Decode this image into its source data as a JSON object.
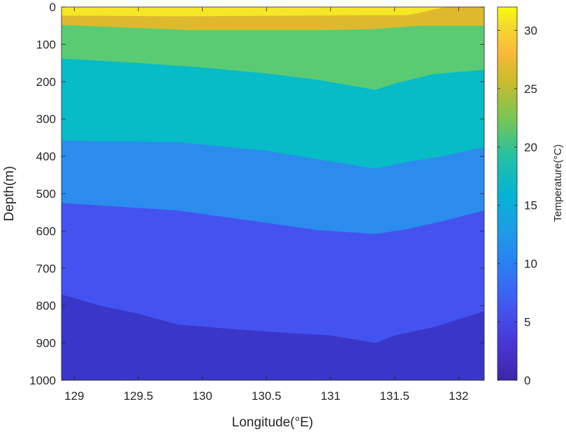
{
  "chart_data": {
    "type": "heatmap",
    "title": "",
    "xlabel": "Longitude(°E)",
    "ylabel": "Depth(m)",
    "xlim": [
      128.9,
      132.2
    ],
    "ylim": [
      0,
      1000
    ],
    "y_reversed": true,
    "x_ticks": [
      "129",
      "129.5",
      "130",
      "130.5",
      "131",
      "131.5",
      "132"
    ],
    "y_ticks": [
      "0",
      "100",
      "200",
      "300",
      "400",
      "500",
      "600",
      "700",
      "800",
      "900",
      "1000"
    ],
    "colorbar": {
      "label": "Temperature(°C)",
      "range": [
        0,
        32
      ],
      "ticks": [
        "0",
        "5",
        "10",
        "15",
        "20",
        "25",
        "30"
      ],
      "colormap": "parula"
    },
    "levels": [
      {
        "range": [
          0,
          5
        ],
        "color": "#3a36c8"
      },
      {
        "range": [
          5,
          10
        ],
        "color": "#4453f0"
      },
      {
        "range": [
          10,
          15
        ],
        "color": "#2b8ced"
      },
      {
        "range": [
          15,
          20
        ],
        "color": "#07bbc7"
      },
      {
        "range": [
          20,
          25
        ],
        "color": "#5bcb73"
      },
      {
        "range": [
          25,
          30
        ],
        "color": "#deb92e"
      },
      {
        "range": [
          30,
          32
        ],
        "color": "#f5e626"
      }
    ],
    "isotherms": [
      {
        "level": 30,
        "points": [
          [
            128.9,
            23
          ],
          [
            129.8,
            25
          ],
          [
            131.3,
            22
          ],
          [
            131.6,
            22
          ],
          [
            131.7,
            15
          ],
          [
            131.9,
            0
          ],
          [
            132.2,
            0
          ]
        ]
      },
      {
        "level": 25,
        "points": [
          [
            128.9,
            48
          ],
          [
            129.9,
            62
          ],
          [
            130.9,
            62
          ],
          [
            131.3,
            60
          ],
          [
            131.7,
            50
          ],
          [
            132.2,
            50
          ]
        ]
      },
      {
        "level": 20,
        "points": [
          [
            128.9,
            138
          ],
          [
            129.5,
            150
          ],
          [
            130,
            162
          ],
          [
            130.5,
            178
          ],
          [
            130.9,
            195
          ],
          [
            131.35,
            222
          ],
          [
            131.5,
            205
          ],
          [
            131.8,
            180
          ],
          [
            132.2,
            168
          ]
        ]
      },
      {
        "level": 15,
        "points": [
          [
            128.9,
            358
          ],
          [
            129.8,
            362
          ],
          [
            130.5,
            385
          ],
          [
            130.9,
            408
          ],
          [
            131.35,
            433
          ],
          [
            131.6,
            415
          ],
          [
            131.9,
            398
          ],
          [
            132.2,
            375
          ]
        ]
      },
      {
        "level": 10,
        "points": [
          [
            128.9,
            525
          ],
          [
            129.8,
            545
          ],
          [
            130.5,
            578
          ],
          [
            130.9,
            598
          ],
          [
            131.35,
            608
          ],
          [
            131.6,
            595
          ],
          [
            131.9,
            572
          ],
          [
            132.2,
            545
          ]
        ]
      },
      {
        "level": 5,
        "points": [
          [
            128.9,
            770
          ],
          [
            129.2,
            800
          ],
          [
            129.5,
            822
          ],
          [
            129.8,
            850
          ],
          [
            130.2,
            862
          ],
          [
            130.6,
            872
          ],
          [
            131,
            880
          ],
          [
            131.35,
            900
          ],
          [
            131.5,
            880
          ],
          [
            131.8,
            858
          ],
          [
            132.2,
            815
          ]
        ]
      }
    ]
  }
}
